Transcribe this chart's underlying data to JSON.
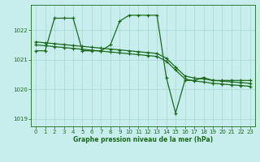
{
  "title": "Graphe pression niveau de la mer (hPa)",
  "bg_color": "#c8eded",
  "grid_color": "#a0d0d0",
  "line_color": "#1a6b1a",
  "xlim": [
    -0.5,
    23.5
  ],
  "ylim": [
    1018.75,
    1022.85
  ],
  "yticks": [
    1019,
    1020,
    1021,
    1022
  ],
  "xticks": [
    0,
    1,
    2,
    3,
    4,
    5,
    6,
    7,
    8,
    9,
    10,
    11,
    12,
    13,
    14,
    15,
    16,
    17,
    18,
    19,
    20,
    21,
    22,
    23
  ],
  "zigzag_x": [
    0,
    1,
    2,
    3,
    4,
    5,
    6,
    7,
    8,
    9,
    10,
    11,
    12,
    13,
    14,
    15,
    16,
    17,
    18,
    19,
    20,
    21,
    22,
    23
  ],
  "zigzag_y": [
    1021.3,
    1021.3,
    1022.4,
    1022.4,
    1022.4,
    1021.3,
    1021.3,
    1021.3,
    1021.5,
    1022.3,
    1022.5,
    1022.5,
    1022.5,
    1022.5,
    1020.4,
    1019.2,
    1020.3,
    1020.3,
    1020.4,
    1020.3,
    1020.3,
    1020.3,
    1020.3,
    1020.3
  ],
  "diag1_x": [
    0,
    1,
    2,
    3,
    4,
    5,
    6,
    7,
    8,
    9,
    10,
    11,
    12,
    13,
    14,
    15,
    16,
    17,
    18,
    19,
    20,
    21,
    22,
    23
  ],
  "diag1_y": [
    1021.6,
    1021.57,
    1021.54,
    1021.51,
    1021.48,
    1021.45,
    1021.42,
    1021.39,
    1021.36,
    1021.33,
    1021.3,
    1021.27,
    1021.24,
    1021.21,
    1021.05,
    1020.75,
    1020.45,
    1020.38,
    1020.35,
    1020.3,
    1020.28,
    1020.25,
    1020.23,
    1020.2
  ],
  "diag2_x": [
    0,
    1,
    2,
    3,
    4,
    5,
    6,
    7,
    8,
    9,
    10,
    11,
    12,
    13,
    14,
    15,
    16,
    17,
    18,
    19,
    20,
    21,
    22,
    23
  ],
  "diag2_y": [
    1021.5,
    1021.47,
    1021.44,
    1021.41,
    1021.38,
    1021.35,
    1021.32,
    1021.29,
    1021.26,
    1021.23,
    1021.2,
    1021.17,
    1021.14,
    1021.11,
    1020.95,
    1020.65,
    1020.35,
    1020.28,
    1020.25,
    1020.2,
    1020.18,
    1020.15,
    1020.13,
    1020.1
  ]
}
